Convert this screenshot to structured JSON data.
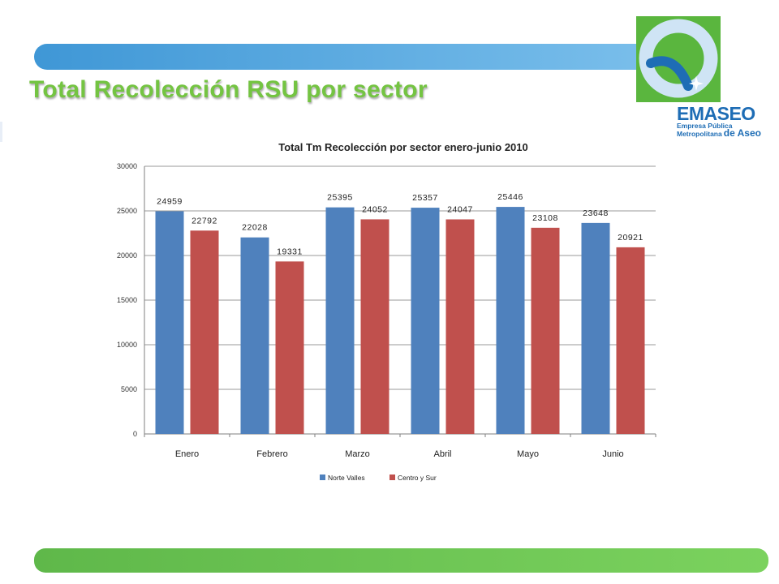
{
  "slide": {
    "title": "Total Recolección RSU por sector"
  },
  "logo": {
    "name": "EMASEO",
    "tagline_line1": "Empresa Pública",
    "tagline_line2": "Metropolitana",
    "tagline_suffix": "de Aseo",
    "colors": {
      "green": "#5ab63e",
      "blue": "#1e6db5",
      "light_blue": "#cfe4f5"
    }
  },
  "colors": {
    "title": "#74c442",
    "top_band": "#4ea6e0",
    "bottom_band": "#6cc452"
  },
  "chart_data": {
    "type": "bar",
    "title": "Total Tm Recolección por sector enero-junio 2010",
    "categories": [
      "Enero",
      "Febrero",
      "Marzo",
      "Abril",
      "Mayo",
      "Junio"
    ],
    "series": [
      {
        "name": "Norte Valles",
        "color": "#4f81bd",
        "values": [
          24959,
          22028,
          25395,
          25357,
          25446,
          23648
        ]
      },
      {
        "name": "Centro y Sur",
        "color": "#c0504d",
        "values": [
          22792,
          19331,
          24052,
          24047,
          23108,
          20921
        ]
      }
    ],
    "ylim": [
      0,
      30000
    ],
    "yticks": [
      0,
      5000,
      10000,
      15000,
      20000,
      25000,
      30000
    ],
    "xlabel": "",
    "ylabel": "",
    "grid": true,
    "legend_position": "bottom"
  }
}
